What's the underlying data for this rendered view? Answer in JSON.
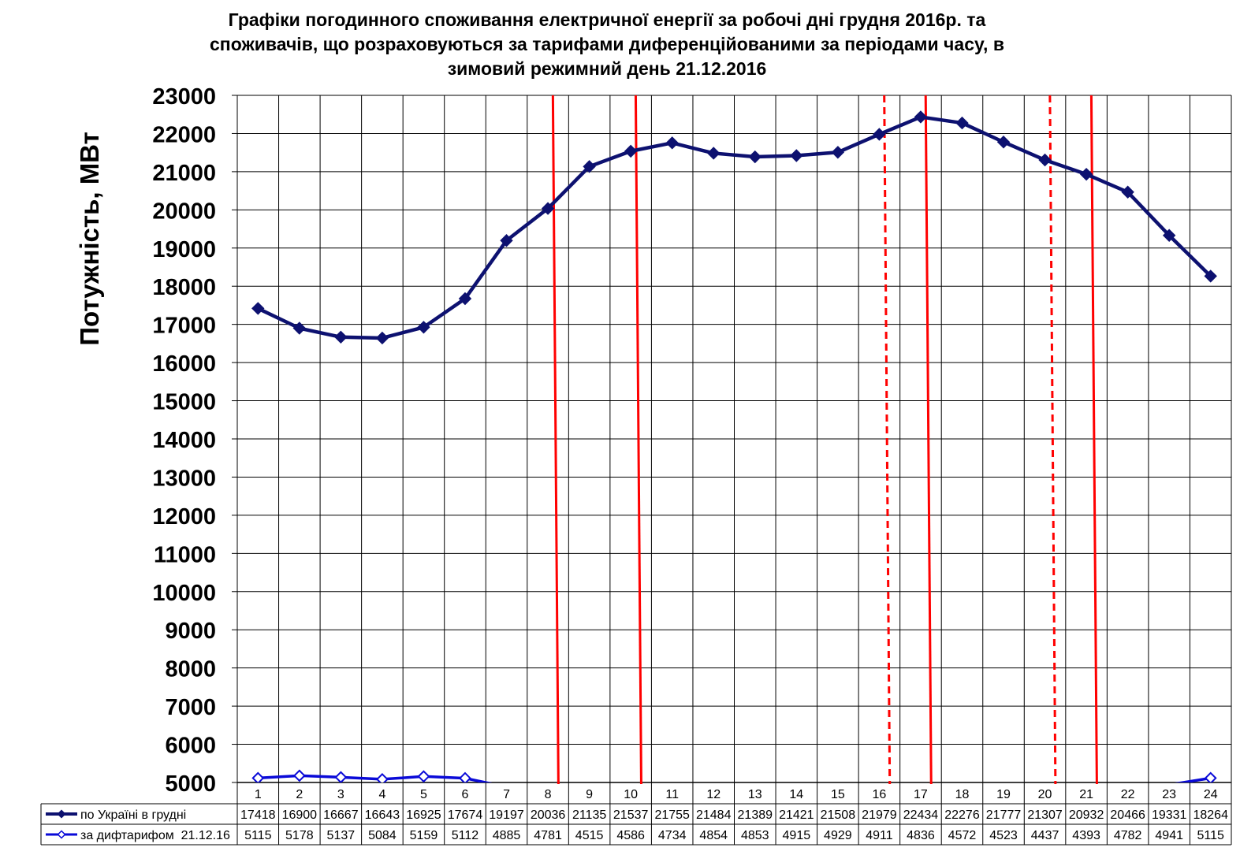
{
  "chart_data": {
    "type": "line",
    "title": [
      "Графіки погодинного споживання електричної енергії за робочі дні грудня 2016р. та",
      "споживачів, що розраховуються за тарифами диференційованими за періодами часу, в",
      "зимовий режимний день 21.12.2016"
    ],
    "ylabel": "Потужність, МВт",
    "xlabel": "",
    "ylim": [
      5000,
      23000
    ],
    "y_ticks": [
      "5000",
      "6000",
      "7000",
      "8000",
      "9000",
      "10000",
      "11000",
      "12000",
      "13000",
      "14000",
      "15000",
      "16000",
      "17000",
      "18000",
      "19000",
      "20000",
      "21000",
      "22000",
      "23000"
    ],
    "categories": [
      "1",
      "2",
      "3",
      "4",
      "5",
      "6",
      "7",
      "8",
      "9",
      "10",
      "11",
      "12",
      "13",
      "14",
      "15",
      "16",
      "17",
      "18",
      "19",
      "20",
      "21",
      "22",
      "23",
      "24"
    ],
    "grid": true,
    "legend_placement": "data-table-left",
    "series": [
      {
        "name": "по Україні в грудні",
        "color": "#0d1170",
        "marker": "filled-diamond",
        "values": [
          17418,
          16900,
          16667,
          16643,
          16925,
          17674,
          19197,
          20036,
          21135,
          21537,
          21755,
          21484,
          21389,
          21421,
          21508,
          21979,
          22434,
          22276,
          21777,
          21307,
          20932,
          20466,
          19331,
          18264
        ]
      },
      {
        "name": "за дифтарифом  21.12.16",
        "color": "#0a0ad8",
        "marker": "open-diamond",
        "values": [
          5115,
          5178,
          5137,
          5084,
          5159,
          5112,
          4885,
          4781,
          4515,
          4586,
          4734,
          4854,
          4853,
          4915,
          4929,
          4911,
          4836,
          4572,
          4523,
          4437,
          4393,
          4782,
          4941,
          5115
        ]
      }
    ],
    "period_markers": [
      {
        "hour": 8,
        "style": "solid",
        "color": "#ff0000"
      },
      {
        "hour": 10,
        "style": "solid",
        "color": "#ff0000"
      },
      {
        "hour": 16,
        "style": "dashed",
        "color": "#ff0000"
      },
      {
        "hour": 17,
        "style": "solid",
        "color": "#ff0000"
      },
      {
        "hour": 20,
        "style": "dashed",
        "color": "#ff0000"
      },
      {
        "hour": 21,
        "style": "solid",
        "color": "#ff0000"
      }
    ]
  }
}
